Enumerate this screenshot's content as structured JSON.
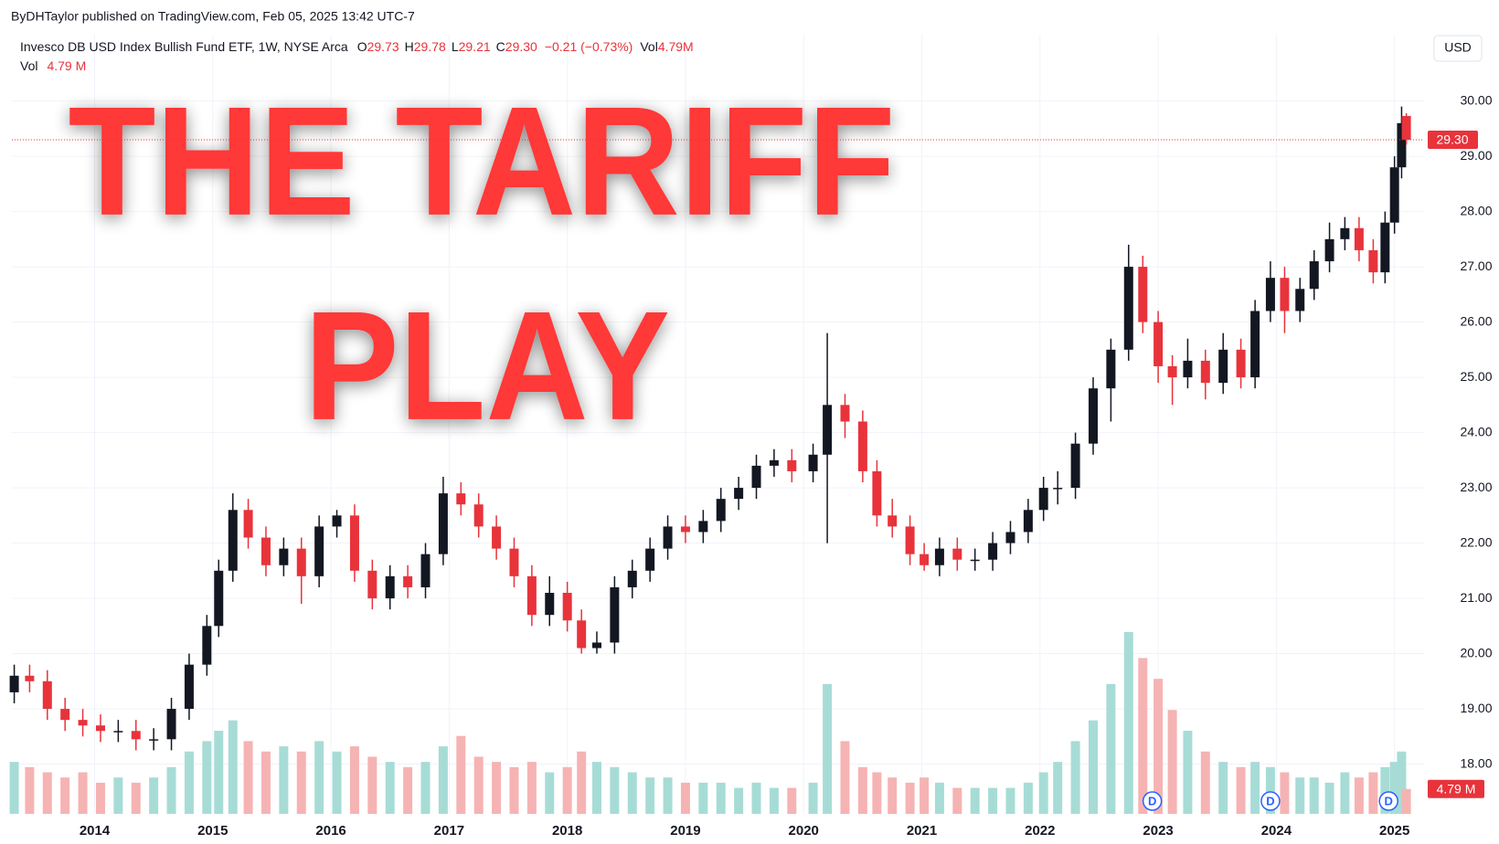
{
  "chart_data": {
    "type": "candlestick",
    "publisher": "ByDHTaylor published on TradingView.com, Feb 05, 2025 13:42 UTC-7",
    "legend": {
      "symbol": "Invesco DB USD Index Bullish Fund ETF, 1W, NYSE Arca",
      "items": [
        {
          "key": "O",
          "text": "29.73"
        },
        {
          "key": "H",
          "text": "29.78"
        },
        {
          "key": "L",
          "text": "29.21"
        },
        {
          "key": "C",
          "text": "29.30"
        }
      ],
      "change": "−0.21 (−0.73%)",
      "vol_key": "Vol",
      "vol_text": "4.79M"
    },
    "currency": "USD",
    "annotations": [
      "THE TARIFF",
      "PLAY"
    ],
    "x": [
      2013.32,
      2013.45,
      2013.6,
      2013.75,
      2013.9,
      2014.05,
      2014.2,
      2014.35,
      2014.5,
      2014.65,
      2014.8,
      2014.95,
      2015.05,
      2015.17,
      2015.3,
      2015.45,
      2015.6,
      2015.75,
      2015.9,
      2016.05,
      2016.2,
      2016.35,
      2016.5,
      2016.65,
      2016.8,
      2016.95,
      2017.1,
      2017.25,
      2017.4,
      2017.55,
      2017.7,
      2017.85,
      2018.0,
      2018.12,
      2018.25,
      2018.4,
      2018.55,
      2018.7,
      2018.85,
      2019.0,
      2019.15,
      2019.3,
      2019.45,
      2019.6,
      2019.75,
      2019.9,
      2020.08,
      2020.2,
      2020.35,
      2020.5,
      2020.62,
      2020.75,
      2020.9,
      2021.02,
      2021.15,
      2021.3,
      2021.45,
      2021.6,
      2021.75,
      2021.9,
      2022.03,
      2022.15,
      2022.3,
      2022.45,
      2022.6,
      2022.75,
      2022.87,
      2023.0,
      2023.12,
      2023.25,
      2023.4,
      2023.55,
      2023.7,
      2023.82,
      2023.95,
      2024.07,
      2024.2,
      2024.32,
      2024.45,
      2024.58,
      2024.7,
      2024.82,
      2024.92,
      2025.0,
      2025.06,
      2025.1
    ],
    "open": [
      19.3,
      19.6,
      19.5,
      19.0,
      18.8,
      18.7,
      18.6,
      18.6,
      18.45,
      18.45,
      19.0,
      19.8,
      20.5,
      21.5,
      22.6,
      22.1,
      21.6,
      21.9,
      21.4,
      22.3,
      22.5,
      21.5,
      21.0,
      21.4,
      21.2,
      21.8,
      22.9,
      22.7,
      22.3,
      21.9,
      21.4,
      20.7,
      21.1,
      20.6,
      20.1,
      20.2,
      21.2,
      21.5,
      21.9,
      22.3,
      22.2,
      22.4,
      22.8,
      23.0,
      23.4,
      23.5,
      23.3,
      23.6,
      24.5,
      24.2,
      23.3,
      22.5,
      22.3,
      21.8,
      21.6,
      21.9,
      21.7,
      21.7,
      22.0,
      22.2,
      22.6,
      23.0,
      23.0,
      23.8,
      24.8,
      25.5,
      27.0,
      26.0,
      25.2,
      25.0,
      25.3,
      24.9,
      25.5,
      25.0,
      26.2,
      26.8,
      26.2,
      26.6,
      27.1,
      27.5,
      27.7,
      27.3,
      26.9,
      27.8,
      28.8,
      29.73
    ],
    "high": [
      19.8,
      19.8,
      19.7,
      19.2,
      19.0,
      18.9,
      18.8,
      18.8,
      18.65,
      19.2,
      20.0,
      20.7,
      21.7,
      22.9,
      22.8,
      22.3,
      22.1,
      22.1,
      22.5,
      22.6,
      22.7,
      21.7,
      21.6,
      21.6,
      22.0,
      23.2,
      23.1,
      22.9,
      22.5,
      22.1,
      21.6,
      21.4,
      21.3,
      20.8,
      20.4,
      21.4,
      21.7,
      22.1,
      22.5,
      22.5,
      22.6,
      23.0,
      23.2,
      23.6,
      23.7,
      23.7,
      23.8,
      25.8,
      24.7,
      24.4,
      23.5,
      22.8,
      22.5,
      22.0,
      22.1,
      22.1,
      21.9,
      22.2,
      22.4,
      22.8,
      23.2,
      23.3,
      24.0,
      25.0,
      25.7,
      27.4,
      27.2,
      26.2,
      25.4,
      25.7,
      25.5,
      25.8,
      25.7,
      26.4,
      27.1,
      27.0,
      26.8,
      27.3,
      27.8,
      27.9,
      27.9,
      27.5,
      28.0,
      29.0,
      29.9,
      29.78
    ],
    "low": [
      19.1,
      19.3,
      18.8,
      18.6,
      18.5,
      18.4,
      18.4,
      18.25,
      18.25,
      18.25,
      18.8,
      19.6,
      20.3,
      21.3,
      21.9,
      21.4,
      21.4,
      20.9,
      21.2,
      22.1,
      21.3,
      20.8,
      20.8,
      21.0,
      21.0,
      21.6,
      22.5,
      22.1,
      21.7,
      21.2,
      20.5,
      20.5,
      20.4,
      20.0,
      20.0,
      20.0,
      21.0,
      21.3,
      21.7,
      22.0,
      22.0,
      22.2,
      22.6,
      22.8,
      23.2,
      23.1,
      23.1,
      22.0,
      23.9,
      23.1,
      22.3,
      22.1,
      21.6,
      21.5,
      21.4,
      21.5,
      21.5,
      21.5,
      21.8,
      22.0,
      22.4,
      22.7,
      22.8,
      23.6,
      24.2,
      25.3,
      25.8,
      24.9,
      24.5,
      24.8,
      24.6,
      24.7,
      24.8,
      24.8,
      26.0,
      25.8,
      26.0,
      26.4,
      26.9,
      27.3,
      27.1,
      26.7,
      26.7,
      27.6,
      28.6,
      29.21
    ],
    "close": [
      19.6,
      19.5,
      19.0,
      18.8,
      18.7,
      18.6,
      18.6,
      18.45,
      18.45,
      19.0,
      19.8,
      20.5,
      21.5,
      22.6,
      22.1,
      21.6,
      21.9,
      21.4,
      22.3,
      22.5,
      21.5,
      21.0,
      21.4,
      21.2,
      21.8,
      22.9,
      22.7,
      22.3,
      21.9,
      21.4,
      20.7,
      21.1,
      20.6,
      20.1,
      20.2,
      21.2,
      21.5,
      21.9,
      22.3,
      22.2,
      22.4,
      22.8,
      23.0,
      23.4,
      23.5,
      23.3,
      23.6,
      24.5,
      24.2,
      23.3,
      22.5,
      22.3,
      21.8,
      21.6,
      21.9,
      21.7,
      21.7,
      22.0,
      22.2,
      22.6,
      23.0,
      23.0,
      23.8,
      24.8,
      25.5,
      27.0,
      26.0,
      25.2,
      25.0,
      25.3,
      24.9,
      25.5,
      25.0,
      26.2,
      26.8,
      26.2,
      26.6,
      27.1,
      27.5,
      27.7,
      27.3,
      26.9,
      27.8,
      28.8,
      29.6,
      29.3
    ],
    "up_color": "#131722",
    "down_color": "#e8333b",
    "volume": {
      "name": "Vol",
      "axis": "y2",
      "up_color": "#a7dcd6",
      "down_color": "#f6b3b3",
      "values": [
        10,
        9,
        8,
        7,
        8,
        6,
        7,
        6,
        7,
        9,
        12,
        14,
        16,
        18,
        14,
        12,
        13,
        12,
        14,
        12,
        13,
        11,
        10,
        9,
        10,
        13,
        15,
        11,
        10,
        9,
        10,
        8,
        9,
        12,
        10,
        9,
        8,
        7,
        7,
        6,
        6,
        6,
        5,
        6,
        5,
        5,
        6,
        25,
        14,
        9,
        8,
        7,
        6,
        7,
        6,
        5,
        5,
        5,
        5,
        6,
        8,
        10,
        14,
        18,
        25,
        35,
        30,
        26,
        20,
        16,
        12,
        10,
        9,
        10,
        9,
        8,
        7,
        7,
        6,
        8,
        7,
        8,
        9,
        10,
        12,
        4.79
      ]
    },
    "xlim": [
      2013.3,
      2025.25
    ],
    "xticks": [
      2014,
      2015,
      2016,
      2017,
      2018,
      2019,
      2020,
      2021,
      2022,
      2023,
      2024,
      2025
    ],
    "ylim": [
      17.1,
      31.2
    ],
    "yticks": [
      {
        "value": 18,
        "label": "18.00"
      },
      {
        "value": 19,
        "label": "19.00"
      },
      {
        "value": 20,
        "label": "20.00"
      },
      {
        "value": 21,
        "label": "21.00"
      },
      {
        "value": 22,
        "label": "22.00"
      },
      {
        "value": 23,
        "label": "23.00"
      },
      {
        "value": 24,
        "label": "24.00"
      },
      {
        "value": 25,
        "label": "25.00"
      },
      {
        "value": 26,
        "label": "26.00"
      },
      {
        "value": 27,
        "label": "27.00"
      },
      {
        "value": 28,
        "label": "28.00"
      },
      {
        "value": 29,
        "label": "29.00"
      },
      {
        "value": 30,
        "label": "30.00"
      }
    ],
    "y2lim": [
      0,
      150
    ],
    "y2ticks": [
      {
        "value": 4.79,
        "label": "4.79 M"
      }
    ],
    "last_price": {
      "value": 29.3,
      "label": "29.30"
    },
    "events": [
      {
        "x": 2022.95,
        "label": "D"
      },
      {
        "x": 2023.95,
        "label": "D"
      },
      {
        "x": 2024.95,
        "label": "D"
      }
    ],
    "grid": true
  }
}
